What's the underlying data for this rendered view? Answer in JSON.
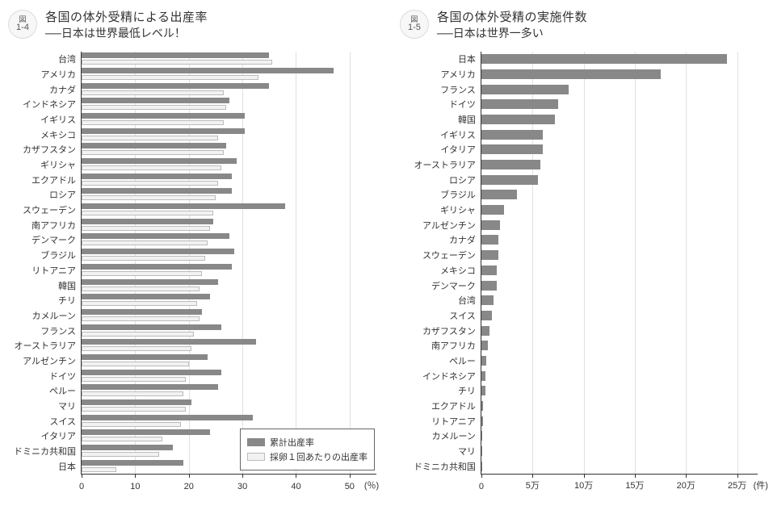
{
  "colors": {
    "bar_primary": "#888888",
    "bar_secondary_fill": "#f2f2f2",
    "bar_secondary_border": "#bbbbbb",
    "axis": "#333333",
    "grid": "#e0e0e0",
    "text": "#333333",
    "background": "#ffffff",
    "badge_bg": "#f7f7f7",
    "badge_border": "#dcdcdc"
  },
  "typography": {
    "title_fontsize": 15,
    "subtitle_fontsize": 14,
    "label_fontsize": 11,
    "tick_fontsize": 11,
    "legend_fontsize": 11,
    "font_family": "Hiragino Kaku Gothic ProN"
  },
  "left_chart": {
    "type": "bar",
    "badge_top": "図",
    "badge_bottom": "1-4",
    "title": "各国の体外受精による出産率",
    "subtitle": "──日本は世界最低レベル！",
    "x_unit": "(％)",
    "xlim": [
      0,
      55
    ],
    "xticks": [
      0,
      10,
      20,
      30,
      40,
      50
    ],
    "xtick_labels": [
      "0",
      "10",
      "20",
      "30",
      "40",
      "50"
    ],
    "legend": {
      "items": [
        {
          "key": "cum",
          "label": "累計出産率"
        },
        {
          "key": "per",
          "label": "採卵１回あたりの出産率"
        }
      ]
    },
    "categories": [
      "台湾",
      "アメリカ",
      "カナダ",
      "インドネシア",
      "イギリス",
      "メキシコ",
      "カザフスタン",
      "ギリシャ",
      "エクアドル",
      "ロシア",
      "スウェーデン",
      "南アフリカ",
      "デンマーク",
      "ブラジル",
      "リトアニア",
      "韓国",
      "チリ",
      "カメルーン",
      "フランス",
      "オーストラリア",
      "アルゼンチン",
      "ドイツ",
      "ペルー",
      "マリ",
      "スイス",
      "イタリア",
      "ドミニカ共和国",
      "日本"
    ],
    "series": {
      "cum": [
        35.0,
        47.0,
        35.0,
        27.5,
        30.5,
        30.5,
        27.0,
        29.0,
        28.0,
        28.0,
        38.0,
        24.5,
        27.5,
        28.5,
        28.0,
        25.5,
        24.0,
        22.5,
        26.0,
        32.5,
        23.5,
        26.0,
        25.5,
        20.5,
        32.0,
        24.0,
        17.0,
        19.0
      ],
      "per": [
        35.5,
        33.0,
        26.5,
        27.0,
        26.5,
        25.5,
        26.5,
        26.0,
        25.5,
        25.0,
        24.5,
        24.0,
        23.5,
        23.0,
        22.5,
        22.0,
        21.5,
        22.0,
        21.0,
        20.5,
        20.0,
        19.5,
        19.0,
        19.5,
        18.5,
        15.0,
        14.5,
        6.5
      ]
    }
  },
  "right_chart": {
    "type": "bar",
    "badge_top": "図",
    "badge_bottom": "1-5",
    "title": "各国の体外受精の実施件数",
    "subtitle": "──日本は世界一多い",
    "x_unit": "(件)",
    "xlim": [
      0,
      270000
    ],
    "xticks": [
      0,
      50000,
      100000,
      150000,
      200000,
      250000
    ],
    "xtick_labels": [
      "0",
      "5万",
      "10万",
      "15万",
      "20万",
      "25万"
    ],
    "categories": [
      "日本",
      "アメリカ",
      "フランス",
      "ドイツ",
      "韓国",
      "イギリス",
      "イタリア",
      "オーストラリア",
      "ロシア",
      "ブラジル",
      "ギリシャ",
      "アルゼンチン",
      "カナダ",
      "スウェーデン",
      "メキシコ",
      "デンマーク",
      "台湾",
      "スイス",
      "カザフスタン",
      "南アフリカ",
      "ペルー",
      "インドネシア",
      "チリ",
      "エクアドル",
      "リトアニア",
      "カメルーン",
      "マリ",
      "ドミニカ共和国"
    ],
    "values": [
      240000,
      175000,
      85000,
      75000,
      72000,
      60000,
      60000,
      58000,
      55000,
      35000,
      22000,
      18000,
      17000,
      17000,
      15000,
      15000,
      12000,
      10000,
      8000,
      6000,
      5000,
      4000,
      4000,
      1800,
      1500,
      1200,
      1000,
      800
    ]
  }
}
